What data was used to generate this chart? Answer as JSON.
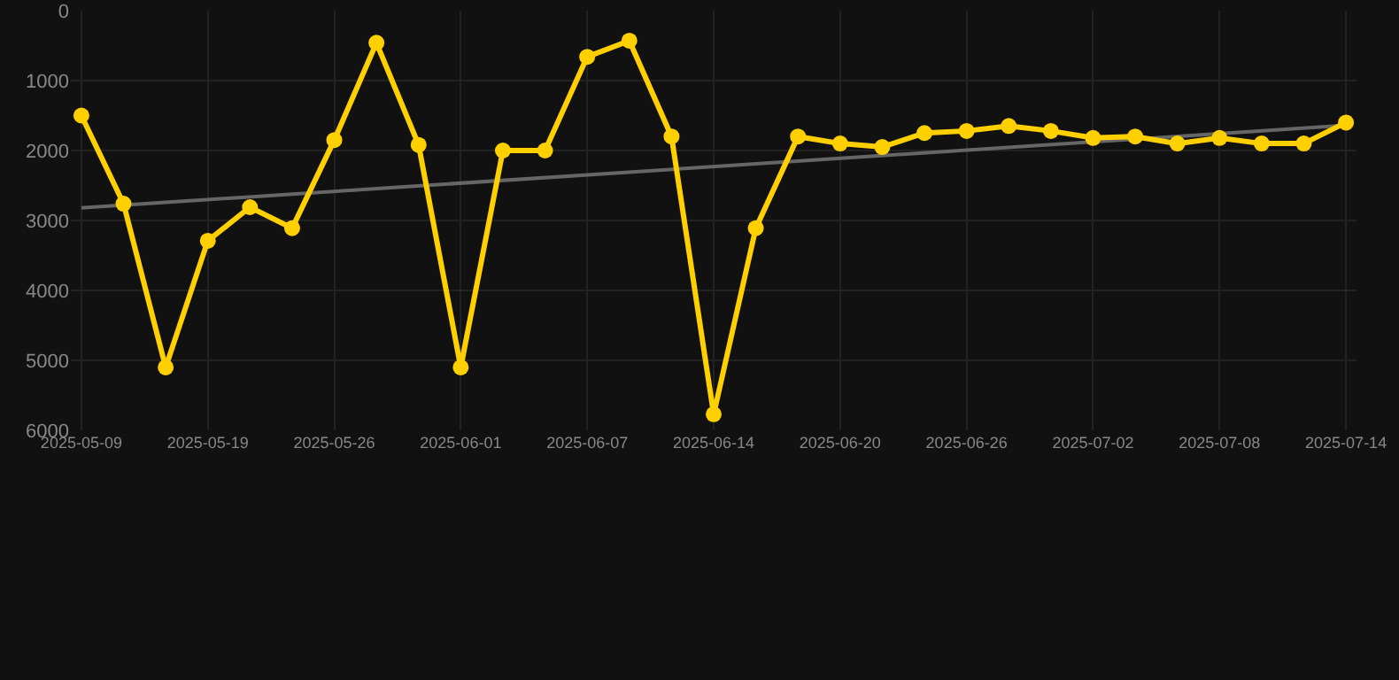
{
  "chart_data": {
    "type": "line",
    "categories": [
      "2025-05-09",
      null,
      null,
      "2025-05-19",
      null,
      null,
      "2025-05-26",
      null,
      null,
      "2025-06-01",
      null,
      null,
      "2025-06-07",
      null,
      null,
      "2025-06-14",
      null,
      null,
      "2025-06-20",
      null,
      null,
      "2025-06-26",
      null,
      null,
      "2025-07-02",
      null,
      null,
      "2025-07-08",
      null,
      null,
      "2025-07-14"
    ],
    "series": [
      {
        "color": "#ffd000",
        "marker": "circle",
        "values": [
          1500,
          2760,
          5100,
          3290,
          2810,
          3110,
          1850,
          460,
          1920,
          5100,
          2000,
          2000,
          660,
          430,
          1800,
          5770,
          3110,
          1800,
          1900,
          1950,
          1750,
          1720,
          1650,
          1720,
          1820,
          1800,
          1900,
          1820,
          1900,
          1900,
          1600
        ]
      },
      {
        "type": "line",
        "color": "#666666",
        "marker": "none",
        "values": [
          2820,
          null,
          null,
          null,
          null,
          null,
          null,
          null,
          null,
          null,
          null,
          null,
          null,
          null,
          null,
          null,
          null,
          null,
          null,
          null,
          null,
          null,
          null,
          null,
          null,
          null,
          null,
          null,
          null,
          null,
          1640
        ]
      }
    ],
    "ylim": [
      6000,
      0
    ],
    "yticks": [
      0,
      1000,
      2000,
      3000,
      4000,
      5000,
      6000
    ],
    "grid": true
  }
}
